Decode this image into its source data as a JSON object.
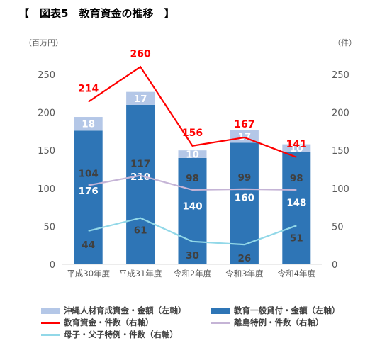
{
  "title": "【　図表5　教育資金の推移　】",
  "chart_data": {
    "type": "bar",
    "categories": [
      "平成30年度",
      "平成31年度",
      "令和2年度",
      "令和3年度",
      "令和4年度"
    ],
    "left_axis_unit": "（百万円）",
    "right_axis_unit": "（件）",
    "ylim_left": [
      0,
      250
    ],
    "ylim_right": [
      0,
      250
    ],
    "left_ticks": [
      0,
      50,
      100,
      150,
      200,
      250
    ],
    "right_ticks": [
      0,
      50,
      100,
      150,
      200,
      250
    ],
    "bar_series": [
      {
        "name": "教育一般貸付・金額（左軸）",
        "color": "#2e75b6",
        "values": [
          176,
          210,
          140,
          160,
          148
        ]
      },
      {
        "name": "沖縄人材育成資金・金額（左軸）",
        "color": "#b4c7e7",
        "values": [
          18,
          17,
          10,
          17,
          10
        ]
      }
    ],
    "line_series": [
      {
        "name": "教育資金・件数（右軸）",
        "color": "#ff0000",
        "values": [
          214,
          260,
          156,
          167,
          141
        ]
      },
      {
        "name": "離島特例・件数（右軸）",
        "color": "#c5b4d6",
        "values": [
          104,
          117,
          98,
          99,
          98
        ]
      },
      {
        "name": "母子・父子特例・件数（右軸）",
        "color": "#92d8e8",
        "values": [
          44,
          61,
          30,
          26,
          51
        ]
      }
    ],
    "grid": false,
    "legend": "bottom"
  },
  "legend_items": [
    {
      "label": "沖縄人材育成資金・金額（左軸）",
      "kind": "box",
      "color": "#b4c7e7"
    },
    {
      "label": "教育一般貸付・金額（左軸）",
      "kind": "box",
      "color": "#2e75b6"
    },
    {
      "label": "教育資金・件数（右軸）",
      "kind": "line",
      "color": "#ff0000"
    },
    {
      "label": "離島特例・件数（右軸）",
      "kind": "line",
      "color": "#c5b4d6"
    },
    {
      "label": "母子・父子特例・件数（右軸）",
      "kind": "line",
      "color": "#92d8e8"
    }
  ]
}
